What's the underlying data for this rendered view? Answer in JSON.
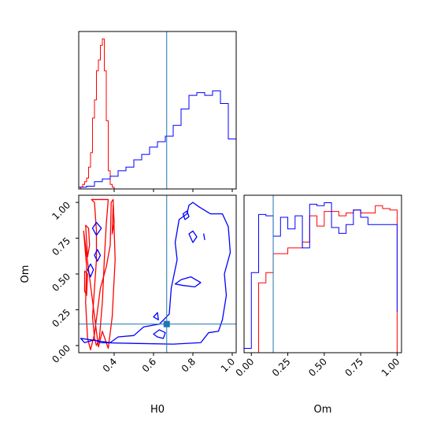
{
  "chart_data": [
    {
      "panel": "H0 marginal",
      "type": "histogram",
      "xlim": [
        0.22,
        1.02
      ],
      "truth": 0.667,
      "series": [
        {
          "color": "#ff0000",
          "bin_edges": [
            0.22,
            0.23,
            0.24,
            0.25,
            0.26,
            0.27,
            0.28,
            0.29,
            0.3,
            0.31,
            0.32,
            0.33,
            0.34,
            0.35,
            0.36,
            0.37,
            0.38,
            0.39,
            0.4,
            0.41
          ],
          "counts": [
            0,
            2,
            5,
            8,
            12,
            24,
            40,
            78,
            98,
            130,
            142,
            158,
            165,
            130,
            75,
            20,
            5,
            2,
            0
          ]
        },
        {
          "color": "#0000ff",
          "bin_edges": [
            0.22,
            0.26,
            0.3,
            0.34,
            0.38,
            0.42,
            0.46,
            0.5,
            0.54,
            0.58,
            0.62,
            0.66,
            0.7,
            0.74,
            0.78,
            0.82,
            0.86,
            0.9,
            0.94,
            0.98,
            1.02
          ],
          "counts": [
            2,
            3,
            8,
            11,
            14,
            20,
            24,
            32,
            38,
            46,
            52,
            58,
            70,
            88,
            103,
            106,
            103,
            108,
            94,
            55,
            15
          ]
        }
      ]
    },
    {
      "panel": "H0 vs Om joint",
      "type": "contour",
      "xlabel": "H0",
      "ylabel": "Om",
      "xlim": [
        0.22,
        1.02
      ],
      "ylim": [
        -0.05,
        1.05
      ],
      "xticks": [
        "0.4",
        "0.6",
        "0.8",
        "1.0"
      ],
      "yticks": [
        "0.00",
        "0.25",
        "0.50",
        "0.75",
        "1.00"
      ],
      "truth": [
        0.667,
        0.15
      ],
      "series": [
        {
          "color": "#ff0000",
          "contours": [
            [
              [
                0.285,
                1.02
              ],
              [
                0.3,
                1.0
              ],
              [
                0.31,
                0.8
              ],
              [
                0.31,
                0.6
              ],
              [
                0.3,
                0.4
              ],
              [
                0.29,
                0.2
              ],
              [
                0.3,
                0.05
              ],
              [
                0.31,
                0.0
              ],
              [
                0.325,
                0.05
              ],
              [
                0.34,
                0.3
              ],
              [
                0.35,
                0.6
              ],
              [
                0.36,
                0.85
              ],
              [
                0.37,
                1.02
              ]
            ],
            [
              [
                0.245,
                0.8
              ],
              [
                0.26,
                0.55
              ],
              [
                0.255,
                0.3
              ],
              [
                0.265,
                0.05
              ],
              [
                0.28,
                -0.03
              ],
              [
                0.3,
                0.08
              ],
              [
                0.33,
                0.4
              ],
              [
                0.36,
                0.55
              ],
              [
                0.38,
                0.7
              ],
              [
                0.385,
                1.0
              ],
              [
                0.395,
                1.02
              ],
              [
                0.405,
                0.6
              ],
              [
                0.39,
                0.2
              ],
              [
                0.37,
                -0.02
              ],
              [
                0.34,
                0.1
              ],
              [
                0.32,
                -0.01
              ]
            ],
            [
              [
                0.255,
                0.84
              ],
              [
                0.27,
                0.82
              ],
              [
                0.275,
                0.7
              ],
              [
                0.265,
                0.62
              ]
            ],
            [
              [
                0.25,
                0.52
              ],
              [
                0.265,
                0.5
              ],
              [
                0.26,
                0.35
              ],
              [
                0.25,
                0.38
              ]
            ],
            [
              [
                0.395,
                0.98
              ],
              [
                0.4,
                0.86
              ],
              [
                0.39,
                0.78
              ]
            ]
          ]
        },
        {
          "color": "#0000ff",
          "contours": [
            [
              [
                0.23,
                0.05
              ],
              [
                0.25,
                0.02
              ],
              [
                0.3,
                0.04
              ],
              [
                0.33,
                0.02
              ],
              [
                0.5,
                0.015
              ],
              [
                0.7,
                0.01
              ],
              [
                0.84,
                0.02
              ],
              [
                0.88,
                0.09
              ],
              [
                0.93,
                0.1
              ],
              [
                0.95,
                0.18
              ],
              [
                0.97,
                0.35
              ],
              [
                0.96,
                0.5
              ],
              [
                0.99,
                0.65
              ],
              [
                0.98,
                0.83
              ],
              [
                0.95,
                0.92
              ],
              [
                0.89,
                0.92
              ],
              [
                0.83,
                0.97
              ],
              [
                0.8,
                1.0
              ],
              [
                0.78,
                0.98
              ],
              [
                0.77,
                0.92
              ],
              [
                0.73,
                0.88
              ],
              [
                0.71,
                0.72
              ],
              [
                0.72,
                0.6
              ],
              [
                0.69,
                0.4
              ],
              [
                0.68,
                0.22
              ],
              [
                0.63,
                0.15
              ],
              [
                0.55,
                0.13
              ],
              [
                0.5,
                0.07
              ],
              [
                0.42,
                0.06
              ],
              [
                0.38,
                0.02
              ]
            ],
            [
              [
                0.75,
                0.92
              ],
              [
                0.77,
                0.94
              ],
              [
                0.78,
                0.9
              ],
              [
                0.76,
                0.88
              ]
            ],
            [
              [
                0.78,
                0.78
              ],
              [
                0.8,
                0.8
              ],
              [
                0.82,
                0.76
              ],
              [
                0.8,
                0.72
              ]
            ],
            [
              [
                0.29,
                0.82
              ],
              [
                0.31,
                0.86
              ],
              [
                0.335,
                0.82
              ],
              [
                0.31,
                0.77
              ]
            ],
            [
              [
                0.3,
                0.63
              ],
              [
                0.315,
                0.67
              ],
              [
                0.33,
                0.63
              ],
              [
                0.315,
                0.59
              ]
            ],
            [
              [
                0.265,
                0.53
              ],
              [
                0.28,
                0.57
              ],
              [
                0.295,
                0.53
              ],
              [
                0.28,
                0.48
              ]
            ],
            [
              [
                0.71,
                0.43
              ],
              [
                0.74,
                0.46
              ],
              [
                0.79,
                0.48
              ],
              [
                0.84,
                0.44
              ],
              [
                0.81,
                0.41
              ],
              [
                0.75,
                0.42
              ]
            ],
            [
              [
                0.6,
                0.2
              ],
              [
                0.62,
                0.23
              ],
              [
                0.625,
                0.18
              ]
            ],
            [
              [
                0.6,
                0.08
              ],
              [
                0.63,
                0.11
              ],
              [
                0.66,
                0.09
              ],
              [
                0.65,
                0.05
              ],
              [
                0.62,
                0.06
              ]
            ],
            [
              [
                0.855,
                0.78
              ],
              [
                0.86,
                0.74
              ]
            ]
          ]
        }
      ]
    },
    {
      "panel": "Om marginal",
      "type": "histogram",
      "xlabel": "Om",
      "xlim": [
        -0.05,
        1.03
      ],
      "xticks": [
        "0.00",
        "0.25",
        "0.50",
        "0.75",
        "1.00"
      ],
      "truth": 0.15,
      "series": [
        {
          "color": "#ff0000",
          "bin_edges": [
            0.0,
            0.05,
            0.1,
            0.15,
            0.2,
            0.25,
            0.3,
            0.35,
            0.4,
            0.45,
            0.5,
            0.55,
            0.6,
            0.65,
            0.7,
            0.75,
            0.8,
            0.85,
            0.9,
            0.95,
            1.0
          ],
          "counts": [
            0,
            48,
            55,
            68,
            68,
            72,
            72,
            76,
            94,
            87,
            97,
            97,
            94,
            96,
            98,
            96,
            96,
            101,
            99,
            98
          ]
        },
        {
          "color": "#0000ff",
          "bin_edges": [
            -0.05,
            0.0,
            0.05,
            0.1,
            0.15,
            0.2,
            0.25,
            0.3,
            0.35,
            0.4,
            0.45,
            0.5,
            0.55,
            0.6,
            0.65,
            0.7,
            0.75,
            0.8,
            0.85,
            0.9,
            0.95,
            1.0
          ],
          "counts": [
            3,
            55,
            95,
            94,
            80,
            93,
            85,
            94,
            72,
            102,
            101,
            103,
            86,
            82,
            88,
            98,
            93,
            88,
            88,
            88,
            88,
            28
          ]
        }
      ]
    }
  ]
}
